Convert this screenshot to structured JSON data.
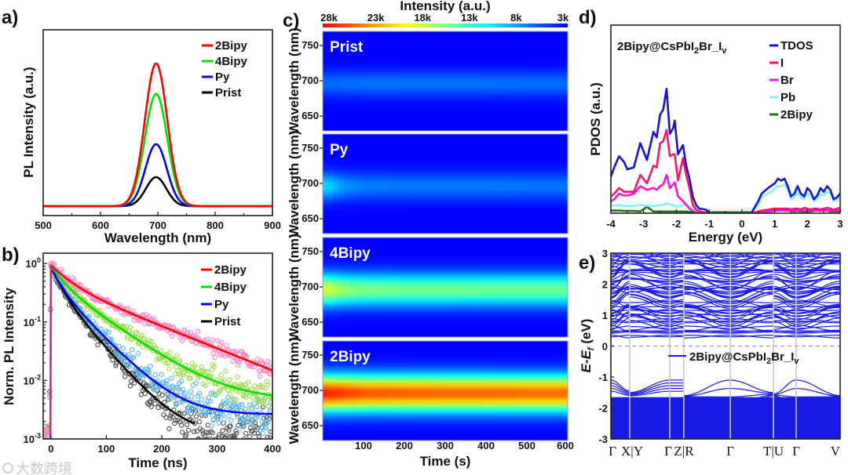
{
  "watermark": "大数跨境",
  "chart_data": [
    {
      "panel": "a)",
      "type": "line",
      "xlabel": "Wavelength (nm)",
      "ylabel": "PL Intensity (a.u.)",
      "xlim": [
        500,
        900
      ],
      "ylim": [
        -0.066,
        1.236
      ],
      "xticks": [
        "500",
        "600",
        "700",
        "800",
        "900"
      ],
      "legend_placement": "top-right",
      "series": [
        {
          "name": "2Bipy",
          "color": "#ff0000",
          "peak_nm": 697,
          "fwhm_nm": 46,
          "peak_intensity": 1.0
        },
        {
          "name": "4Bipy",
          "color": "#00e000",
          "peak_nm": 697,
          "fwhm_nm": 46,
          "peak_intensity": 0.786
        },
        {
          "name": "Py",
          "color": "#0000ff",
          "peak_nm": 697,
          "fwhm_nm": 44,
          "peak_intensity": 0.434
        },
        {
          "name": "Prist",
          "color": "#000000",
          "peak_nm": 697,
          "fwhm_nm": 42,
          "peak_intensity": 0.203
        }
      ]
    },
    {
      "panel": "b)",
      "type": "scatter",
      "yscale": "log",
      "xlabel": "Time (ns)",
      "ylabel": "Norm. PL Intensity",
      "xlim": [
        -14,
        400
      ],
      "ylim": [
        0.001,
        1.5
      ],
      "xticks": [
        "0",
        "100",
        "200",
        "300",
        "400"
      ],
      "yticks": [
        {
          "base": "10",
          "exp": "0",
          "value": 1
        },
        {
          "base": "10",
          "exp": "-1",
          "value": 0.1
        },
        {
          "base": "10",
          "exp": "-2",
          "value": 0.01
        },
        {
          "base": "10",
          "exp": "-3",
          "value": 0.001
        }
      ],
      "legend_placement": "top-right",
      "series": [
        {
          "name": "2Bipy",
          "fit_color": "#ff0000",
          "point_color": "#ff88c8",
          "fit": {
            "A1": 0.45,
            "tau1_ns": 30,
            "A2": 0.48,
            "tau2_ns": 115,
            "c": 0.0
          },
          "fit_range_ns": [
            0,
            400
          ]
        },
        {
          "name": "4Bipy",
          "fit_color": "#00e000",
          "point_color": "#a0dd50",
          "fit": {
            "A1": 0.4,
            "tau1_ns": 20,
            "A2": 0.5,
            "tau2_ns": 65,
            "c": 0.0045
          },
          "fit_range_ns": [
            0,
            400
          ]
        },
        {
          "name": "Py",
          "fit_color": "#0000ff",
          "point_color": "#5cbcf0",
          "fit": {
            "A1": 0.4,
            "tau1_ns": 15,
            "A2": 0.45,
            "tau2_ns": 45,
            "c": 0.0026
          },
          "fit_range_ns": [
            0,
            400
          ]
        },
        {
          "name": "Prist",
          "fit_color": "#000000",
          "point_color": "#555555",
          "fit": {
            "A1": 0.45,
            "tau1_ns": 15,
            "A2": 0.42,
            "tau2_ns": 40,
            "c": 0.0012
          },
          "fit_range_ns": [
            0,
            260
          ]
        }
      ]
    },
    {
      "panel": "c)",
      "type": "heatmap",
      "colorbar_title": "Intensity (a.u.)",
      "colorbar_ticks": [
        "28k",
        "23k",
        "18k",
        "13k",
        "8k",
        "3k"
      ],
      "colorbar_range": [
        3000,
        28000
      ],
      "xlabel": "Time (s)",
      "ylabel": "Wavelength (nm)",
      "xlim": [
        0,
        600
      ],
      "ylim": [
        629,
        770
      ],
      "xticks": [
        "100",
        "200",
        "300",
        "400",
        "500",
        "600"
      ],
      "yticks": [
        "750",
        "700",
        "650"
      ],
      "times_s": [
        0,
        20,
        50,
        100,
        200,
        300,
        400,
        500,
        600
      ],
      "center_nm": 696,
      "panels": [
        {
          "name": "Prist",
          "fwhm_nm": 30,
          "peak_intensity": [
            6500,
            6500,
            6700,
            6800,
            6800,
            6800,
            6800,
            6700,
            6700
          ]
        },
        {
          "name": "Py",
          "fwhm_nm": 32,
          "peak_intensity": [
            10500,
            10000,
            8000,
            7200,
            7000,
            7000,
            7000,
            6900,
            6900
          ]
        },
        {
          "name": "4Bipy",
          "fwhm_nm": 38,
          "peak_intensity": [
            18500,
            18000,
            16500,
            15500,
            15200,
            15200,
            15000,
            15000,
            15000
          ]
        },
        {
          "name": "2Bipy",
          "fwhm_nm": 42,
          "peak_intensity": [
            27500,
            27000,
            26500,
            25500,
            25200,
            25000,
            25000,
            24800,
            24800
          ]
        }
      ]
    },
    {
      "panel": "d)",
      "type": "line",
      "title": {
        "main": "2Bipy@CsPbI",
        "sub1": "2",
        "mid": "Br_I",
        "sub2": "v"
      },
      "xlabel": "Energy (eV)",
      "ylabel": "PDOS (a.u.)",
      "xlim": [
        -4,
        3
      ],
      "ylim": [
        0,
        1
      ],
      "xticks": [
        "-4",
        "-3",
        "-2",
        "-1",
        "0",
        "1",
        "2",
        "3"
      ],
      "legend_placement": "top-right",
      "energy_eV": [
        -4,
        -3.9,
        -3.75,
        -3.6,
        -3.5,
        -3.3,
        -3.1,
        -2.9,
        -2.7,
        -2.6,
        -2.5,
        -2.4,
        -2.3,
        -2.2,
        -2.1,
        -2.05,
        -1.95,
        -1.8,
        -1.7,
        -1.6,
        -1.5,
        -1.4,
        -1.3,
        -1.1,
        -1.0,
        0.3,
        0.4,
        0.5,
        0.6,
        0.8,
        1.0,
        1.1,
        1.2,
        1.3,
        1.4,
        1.5,
        1.6,
        1.7,
        1.8,
        1.9,
        2.0,
        2.1,
        2.2,
        2.3,
        2.4,
        2.5,
        2.6,
        2.7,
        2.8,
        2.9,
        3.0
      ],
      "series": [
        {
          "name": "TDOS",
          "color": "#1212e0",
          "values": [
            0.19,
            0.24,
            0.3,
            0.27,
            0.23,
            0.24,
            0.37,
            0.28,
            0.43,
            0.4,
            0.52,
            0.55,
            0.66,
            0.42,
            0.45,
            0.49,
            0.31,
            0.36,
            0.25,
            0.18,
            0.085,
            0.04,
            0.02,
            0.015,
            0,
            0,
            0.03,
            0.06,
            0.1,
            0.13,
            0.155,
            0.18,
            0.17,
            0.18,
            0.14,
            0.085,
            0.1,
            0.14,
            0.1,
            0.085,
            0.13,
            0.11,
            0.07,
            0.09,
            0.13,
            0.11,
            0.14,
            0.12,
            0.07,
            0.08,
            0.1
          ]
        },
        {
          "name": "I",
          "color": "#ff1464",
          "values": [
            0.085,
            0.1,
            0.13,
            0.11,
            0.11,
            0.11,
            0.2,
            0.155,
            0.25,
            0.24,
            0.37,
            0.38,
            0.44,
            0.3,
            0.31,
            0.31,
            0.17,
            0.29,
            0.2,
            0.13,
            0.04,
            0.015,
            0.005,
            0,
            0,
            0,
            0,
            0.005,
            0.01,
            0.015,
            0.02,
            0.02,
            0.02,
            0.02,
            0.02,
            0.015,
            0.02,
            0.02,
            0.015,
            0.025,
            0.02,
            0.015,
            0.02,
            0.02,
            0.015,
            0.02,
            0.025,
            0.02,
            0.015,
            0.02,
            0.025
          ]
        },
        {
          "name": "Br",
          "color": "#ff10e0",
          "values": [
            0.06,
            0.07,
            0.1,
            0.09,
            0.09,
            0.1,
            0.14,
            0.12,
            0.13,
            0.12,
            0.14,
            0.15,
            0.2,
            0.13,
            0.15,
            0.16,
            0.085,
            0.06,
            0.04,
            0.02,
            0.007,
            0,
            0,
            0,
            0,
            0,
            0,
            0,
            0.005,
            0.005,
            0.01,
            0.01,
            0.01,
            0.01,
            0.01,
            0.008,
            0.01,
            0.01,
            0.008,
            0.01,
            0.01,
            0.008,
            0.01,
            0.01,
            0.008,
            0.01,
            0.01,
            0.01,
            0.008,
            0.01,
            0.01
          ]
        },
        {
          "name": "Pb",
          "color": "#88f2f2",
          "values": [
            0.04,
            0.035,
            0.04,
            0.035,
            0.035,
            0.035,
            0.04,
            0.035,
            0.035,
            0.035,
            0.04,
            0.04,
            0.05,
            0.04,
            0.04,
            0.035,
            0.03,
            0.04,
            0.04,
            0.03,
            0.02,
            0.01,
            0.005,
            0,
            0,
            0,
            0.02,
            0.04,
            0.08,
            0.1,
            0.125,
            0.14,
            0.14,
            0.15,
            0.12,
            0.07,
            0.08,
            0.11,
            0.08,
            0.07,
            0.1,
            0.09,
            0.06,
            0.07,
            0.1,
            0.09,
            0.11,
            0.1,
            0.06,
            0.065,
            0.08
          ]
        },
        {
          "name": "2Bipy",
          "color": "#1a7a1a",
          "values": [
            0.01,
            0.01,
            0.01,
            0.008,
            0.008,
            0.008,
            0.005,
            0.03,
            0.005,
            0.005,
            0.005,
            0.005,
            0.005,
            0.005,
            0.005,
            0.005,
            0.005,
            0.005,
            0.005,
            0.003,
            0,
            0,
            0,
            0,
            0,
            0,
            0,
            0,
            0,
            0.005,
            0.008,
            0.01,
            0.015,
            0.02,
            0.01,
            0.008,
            0.005,
            0.008,
            0.005,
            0.005,
            0.005,
            0.005,
            0.008,
            0.01,
            0.015,
            0.02,
            0.01,
            0.005,
            0.005,
            0.005,
            0.005
          ]
        }
      ]
    },
    {
      "panel": "e)",
      "type": "line",
      "ylabel": {
        "e1": "E",
        "dash": "-",
        "e2": "E",
        "sub": "f",
        "unit": " (eV)"
      },
      "ylim": [
        -3,
        3
      ],
      "yticks": [
        "3",
        "2",
        "1",
        "0",
        "-1",
        "-2",
        "-3"
      ],
      "fermi_level_eV": 0,
      "vbm_eV": -1.1,
      "cbm_eV": 0.3,
      "k_path": [
        {
          "label": "Γ",
          "k": 0.0
        },
        {
          "label": "X|Y",
          "k": 0.082
        },
        {
          "label": "Γ",
          "k": 0.257
        },
        {
          "label": "Z|R",
          "k": 0.318
        },
        {
          "label": "Γ",
          "k": 0.521
        },
        {
          "label": "T|U",
          "k": 0.709
        },
        {
          "label": "Γ",
          "k": 0.808
        },
        {
          "label": "V",
          "k": 1.0
        }
      ],
      "legend": {
        "main": "2Bipy@CsPbI",
        "sub1": "2",
        "mid": "Br_I",
        "sub2": "v",
        "color": "#1a1ae6"
      }
    }
  ]
}
